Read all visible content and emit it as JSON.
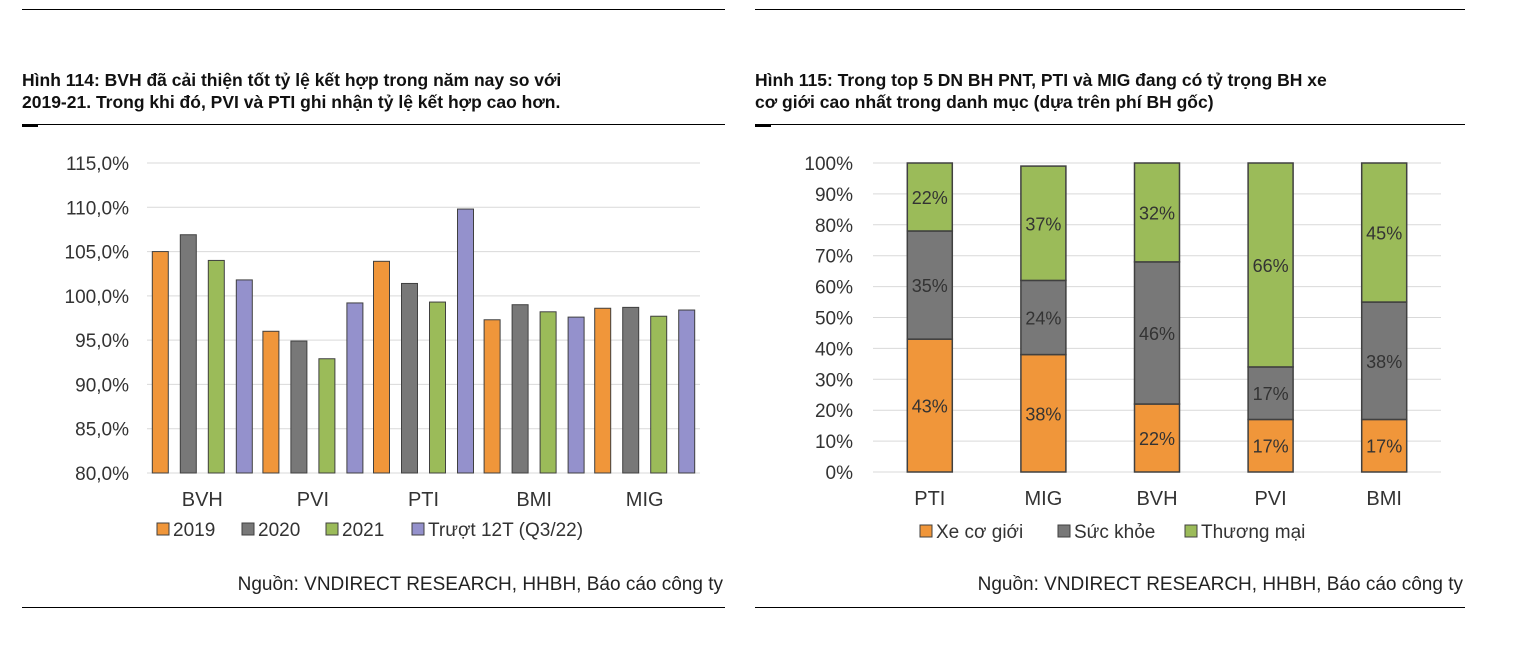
{
  "colors": {
    "orange": "#F0963A",
    "gray": "#787878",
    "green": "#9BBB59",
    "purple": "#9491CC",
    "grid": "#D9D9D9",
    "outline": "#404040"
  },
  "left": {
    "title_line1": "Hình 114: BVH đã cải thiện tốt tỷ lệ kết hợp trong năm nay so với",
    "title_line2": "2019-21. Trong khi đó, PVI và PTI ghi nhận tỷ lệ kết hợp cao hơn.",
    "source": "Nguồn: VNDIRECT RESEARCH, HHBH, Báo cáo công ty"
  },
  "right": {
    "title_line1": "Hình 115: Trong top 5 DN BH PNT, PTI và MIG đang có tỷ trọng BH xe",
    "title_line2": "cơ giới cao nhất trong danh mục (dựa trên phí BH gốc)",
    "source": "Nguồn: VNDIRECT RESEARCH, HHBH, Báo cáo công ty"
  },
  "chart_data": [
    {
      "type": "bar",
      "title": "Hình 114: BVH đã cải thiện tốt tỷ lệ kết hợp trong năm nay so với 2019-21. Trong khi đó, PVI và PTI ghi nhận tỷ lệ kết hợp cao hơn.",
      "categories": [
        "BVH",
        "PVI",
        "PTI",
        "BMI",
        "MIG"
      ],
      "series": [
        {
          "name": "2019",
          "color": "#F0963A",
          "values": [
            105.0,
            96.0,
            103.9,
            97.3,
            98.6
          ]
        },
        {
          "name": "2020",
          "color": "#787878",
          "values": [
            106.9,
            94.9,
            101.4,
            99.0,
            98.7
          ]
        },
        {
          "name": "2021",
          "color": "#9BBB59",
          "values": [
            104.0,
            92.9,
            99.3,
            98.2,
            97.7
          ]
        },
        {
          "name": "Trượt 12T (Q3/22)",
          "color": "#9491CC",
          "values": [
            101.8,
            99.2,
            109.8,
            97.6,
            98.4
          ]
        }
      ],
      "ylim": [
        80,
        115
      ],
      "yticks": [
        "80,0%",
        "85,0%",
        "90,0%",
        "95,0%",
        "100,0%",
        "105,0%",
        "110,0%",
        "115,0%"
      ],
      "xlabel": "",
      "ylabel": "",
      "legend": "bottom"
    },
    {
      "type": "bar",
      "stacked": true,
      "title": "Hình 115: Trong top 5 DN BH PNT, PTI và MIG đang có tỷ trọng BH xe cơ giới cao nhất trong danh mục (dựa trên phí BH gốc)",
      "categories": [
        "PTI",
        "MIG",
        "BVH",
        "PVI",
        "BMI"
      ],
      "series": [
        {
          "name": "Xe cơ giới",
          "color": "#F0963A",
          "values": [
            43,
            38,
            22,
            17,
            17
          ],
          "labels": [
            "43%",
            "38%",
            "22%",
            "17%",
            "17%"
          ]
        },
        {
          "name": "Sức khỏe",
          "color": "#787878",
          "values": [
            35,
            24,
            46,
            17,
            38
          ],
          "labels": [
            "35%",
            "24%",
            "46%",
            "17%",
            "38%"
          ]
        },
        {
          "name": "Thương mại",
          "color": "#9BBB59",
          "values": [
            22,
            37,
            32,
            66,
            45
          ],
          "labels": [
            "22%",
            "37%",
            "32%",
            "66%",
            "45%"
          ]
        }
      ],
      "ylim": [
        0,
        100
      ],
      "yticks": [
        "0%",
        "10%",
        "20%",
        "30%",
        "40%",
        "50%",
        "60%",
        "70%",
        "80%",
        "90%",
        "100%"
      ],
      "xlabel": "",
      "ylabel": "",
      "legend": "bottom"
    }
  ]
}
